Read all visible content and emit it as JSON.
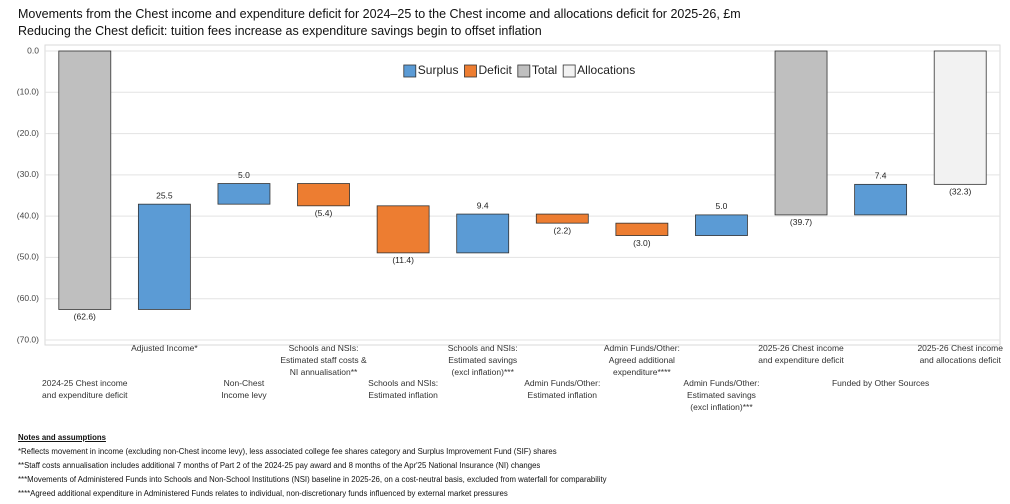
{
  "chart_data": {
    "type": "waterfall",
    "title": "Movements from the Chest income and expenditure deficit for 2024–25 to the Chest income and allocations deficit for 2025-26, £m",
    "subtitle": "Reducing the Chest deficit: tuition fees increase as expenditure savings begin to offset inflation",
    "categories": [
      "2024-25 Chest income\nand expenditure deficit",
      "Adjusted Income*",
      "Non-Chest\nIncome levy",
      "Schools and NSIs:\nEstimated staff costs &\nNI annualisation**",
      "Schools and NSIs:\nEstimated inflation",
      "Schools and NSIs:\nEstimated savings\n(excl inflation)***",
      "Admin Funds/Other:\nEstimated inflation",
      "Admin Funds/Other:\nAgreed additional\nexpenditure****",
      "Admin Funds/Other:\nEstimated savings\n(excl inflation)***",
      "2025-26 Chest income\nand expenditure deficit",
      "Funded by Other Sources",
      "2025-26 Chest income\nand allocations deficit"
    ],
    "series": [
      {
        "name": "Surplus",
        "color": "#5b9bd5",
        "cumulative": true,
        "values": [
          null,
          25.5,
          5.0,
          null,
          null,
          9.4,
          null,
          null,
          5.0,
          null,
          7.4,
          null
        ],
        "value_labels": [
          null,
          "25.5",
          "5.0",
          null,
          null,
          "9.4",
          null,
          null,
          "5.0",
          null,
          "7.4",
          null
        ]
      },
      {
        "name": "Deficit",
        "color": "#ed7d31",
        "cumulative": true,
        "values": [
          null,
          null,
          null,
          -5.4,
          -11.4,
          null,
          -2.2,
          -3.0,
          null,
          null,
          null,
          null
        ],
        "value_labels": [
          null,
          null,
          null,
          "(5.4)",
          "(11.4)",
          null,
          "(2.2)",
          "(3.0)",
          null,
          null,
          null,
          null
        ]
      },
      {
        "name": "Total",
        "color": "#bfbfbf",
        "cumulative": false,
        "values": [
          -62.6,
          null,
          null,
          null,
          null,
          null,
          null,
          null,
          null,
          -39.7,
          null,
          null
        ],
        "value_labels": [
          "(62.6)",
          null,
          null,
          null,
          null,
          null,
          null,
          null,
          null,
          "(39.7)",
          null,
          null
        ]
      },
      {
        "name": "Allocations",
        "color": "#f2f2f2",
        "cumulative": false,
        "values": [
          null,
          null,
          null,
          null,
          null,
          null,
          null,
          null,
          null,
          null,
          null,
          -32.3
        ],
        "value_labels": [
          null,
          null,
          null,
          null,
          null,
          null,
          null,
          null,
          null,
          null,
          null,
          "(32.3)"
        ]
      }
    ],
    "ylim": [
      -70,
      0
    ],
    "yticks": [
      {
        "value": 0,
        "label": "0.0"
      },
      {
        "value": -10,
        "label": "(10.0)"
      },
      {
        "value": -20,
        "label": "(20.0)"
      },
      {
        "value": -30,
        "label": "(30.0)"
      },
      {
        "value": -40,
        "label": "(40.0)"
      },
      {
        "value": -50,
        "label": "(50.0)"
      },
      {
        "value": -60,
        "label": "(60.0)"
      },
      {
        "value": -70,
        "label": "(70.0)"
      }
    ],
    "grid": true,
    "legend_position": "top"
  },
  "notes": {
    "title": "Notes and assumptions",
    "items": [
      "*Reflects movement in income (excluding non-Chest income levy), less associated college fee shares category and Surplus Improvement Fund (SIF) shares",
      "**Staff costs annualisation includes additional 7 months of Part 2 of the 2024-25 pay award and 8 months of the Apr'25 National Insurance (NI) changes",
      "***Movements of Administered Funds into Schools and Non-School Institutions (NSI) baseline in 2025-26, on a cost-neutral basis, excluded from waterfall for comparability",
      "****Agreed additional expenditure in Administered Funds relates to individual, non-discretionary funds influenced by external market pressures"
    ]
  }
}
